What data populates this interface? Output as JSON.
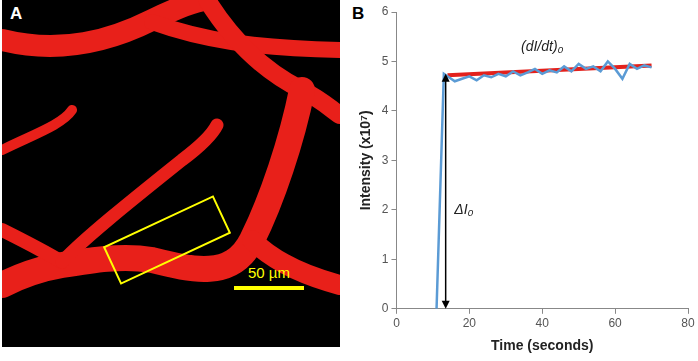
{
  "panel_a": {
    "label": "A",
    "scale_bar": "50 µm"
  },
  "chart_data": {
    "type": "line",
    "panel_label": "B",
    "x_label": "Time (seconds)",
    "y_label": "Intensity (x10⁷)",
    "xlim": [
      0,
      80
    ],
    "xticks": [
      0,
      20,
      40,
      60,
      80
    ],
    "ylim": [
      0,
      6
    ],
    "yticks": [
      0,
      1,
      2,
      3,
      4,
      5,
      6
    ],
    "grid": false,
    "series": [
      {
        "color": "#5b9bd5",
        "x": [
          11,
          13,
          14,
          16,
          18,
          20,
          22,
          24,
          26,
          28,
          30,
          32,
          34,
          36,
          38,
          40,
          42,
          44,
          46,
          48,
          50,
          52,
          54,
          56,
          58,
          60,
          62,
          64,
          66,
          68,
          70
        ],
        "values": [
          0,
          4.75,
          4.7,
          4.6,
          4.65,
          4.7,
          4.62,
          4.72,
          4.68,
          4.75,
          4.7,
          4.8,
          4.72,
          4.78,
          4.85,
          4.75,
          4.82,
          4.78,
          4.9,
          4.8,
          4.95,
          4.85,
          4.9,
          4.8,
          5.0,
          4.85,
          4.65,
          4.95,
          4.85,
          4.92,
          4.88
        ]
      },
      {
        "color": "#e3211c",
        "x": [
          14,
          70
        ],
        "values": [
          4.72,
          4.92
        ]
      }
    ],
    "annotations": [
      {
        "text": "(dI/dt)₀",
        "x": 40,
        "y": 5.3
      },
      {
        "text": "ΔI₀",
        "x": 18.5,
        "y": 2.0,
        "arrow": {
          "x": 13.5,
          "from": 0,
          "to": 4.75
        }
      }
    ]
  }
}
